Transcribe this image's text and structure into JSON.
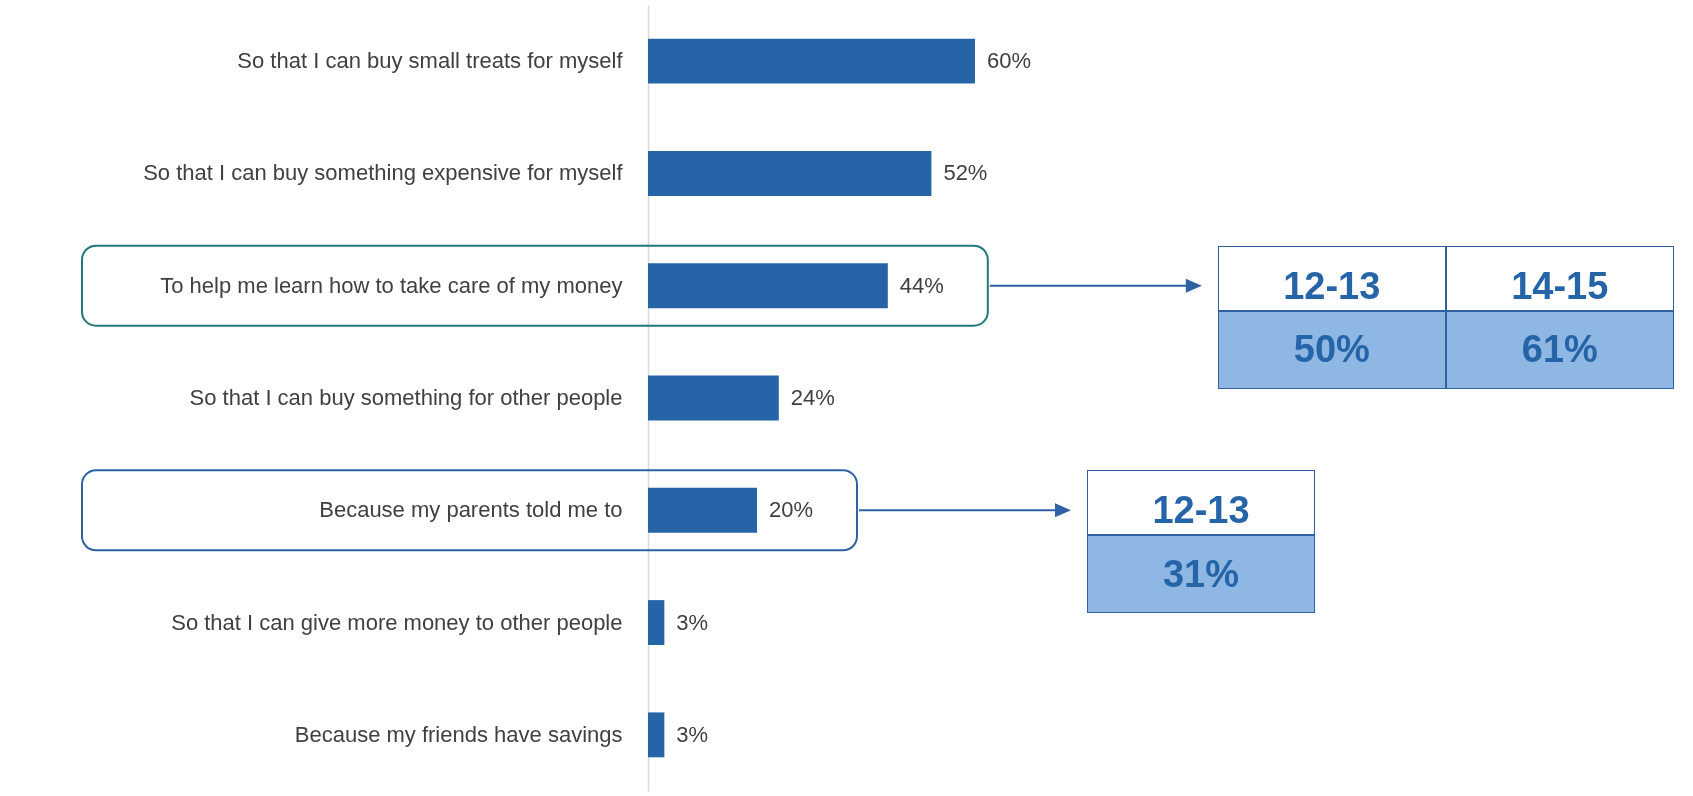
{
  "chart_data": {
    "type": "bar",
    "orientation": "horizontal",
    "color": "#2664a8",
    "categories": [
      "So that I can buy small treats for myself",
      "So that I can buy something expensive for myself",
      "To help me learn how to take care of my money",
      "So that I can buy something for other people",
      "Because my parents told me to",
      "So that I can give more money to other people",
      "Because my friends have savings"
    ],
    "values": [
      60,
      52,
      44,
      24,
      20,
      3,
      3
    ],
    "value_labels": [
      "60%",
      "52%",
      "44%",
      "24%",
      "20%",
      "3%",
      "3%"
    ],
    "annotations": [
      "12-13",
      "50%",
      "14-15",
      "61%",
      "12-13",
      "31%"
    ]
  }
}
